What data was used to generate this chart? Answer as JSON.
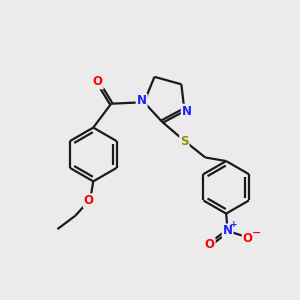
{
  "background_color": "#ebebeb",
  "bond_color": "#1a1a1a",
  "atom_colors": {
    "N": "#2020ff",
    "O": "#ff0000",
    "S": "#909000",
    "C": "#1a1a1a"
  },
  "figsize": [
    3.0,
    3.0
  ],
  "dpi": 100,
  "lw": 1.6,
  "double_sep": 0.09
}
